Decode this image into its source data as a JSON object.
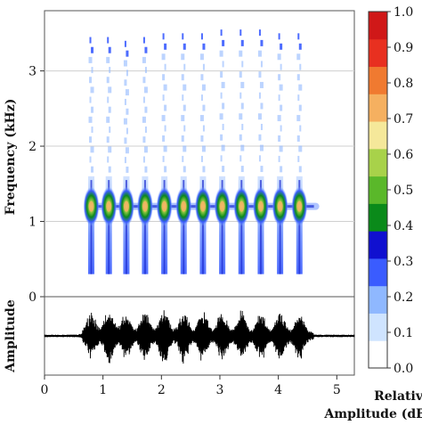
{
  "chart_data": {
    "type": "heatmap",
    "spectrogram": {
      "x_range": [
        0,
        5.3
      ],
      "y_range": [
        0,
        3.8
      ],
      "y_ticks": [
        "0",
        "1",
        "2",
        "3"
      ],
      "ylabel": "Frequency (kHz)",
      "grid": true,
      "band_center_khz": 1.2,
      "band_extent_s": [
        0.7,
        4.7
      ],
      "pulse_times_s": [
        0.8,
        1.1,
        1.4,
        1.72,
        2.05,
        2.38,
        2.71,
        3.04,
        3.37,
        3.7,
        4.03,
        4.36
      ],
      "pulse_top_khz": [
        3.45,
        3.45,
        3.4,
        3.45,
        3.5,
        3.5,
        3.5,
        3.55,
        3.55,
        3.55,
        3.5,
        3.5
      ]
    },
    "waveform": {
      "ylabel": "Amplitude",
      "x_ticks": [
        "0",
        "1",
        "2",
        "3",
        "4",
        "5"
      ],
      "x_range": [
        0,
        5.3
      ],
      "burst_times_s": [
        0.8,
        1.1,
        1.4,
        1.72,
        2.05,
        2.38,
        2.71,
        3.04,
        3.37,
        3.7,
        4.03,
        4.36
      ],
      "burst_peak": [
        0.7,
        0.85,
        0.75,
        0.8,
        0.95,
        0.85,
        0.8,
        0.8,
        0.8,
        0.8,
        0.8,
        0.75
      ]
    },
    "colorbar": {
      "label_line1": "Relative",
      "label_line2": "Amplitude (dB)",
      "range": [
        0,
        1
      ],
      "ticks": [
        "0.0",
        "0.1",
        "0.2",
        "0.3",
        "0.4",
        "0.5",
        "0.6",
        "0.7",
        "0.8",
        "0.9",
        "1.0"
      ],
      "colors": [
        "#ffffff",
        "#cfe4ff",
        "#8fb8ff",
        "#3a5cff",
        "#1010d0",
        "#0a8a1a",
        "#5ab82a",
        "#a8d24a",
        "#f5e89a",
        "#f5b060",
        "#f07a30",
        "#e83020",
        "#d01818"
      ]
    }
  }
}
